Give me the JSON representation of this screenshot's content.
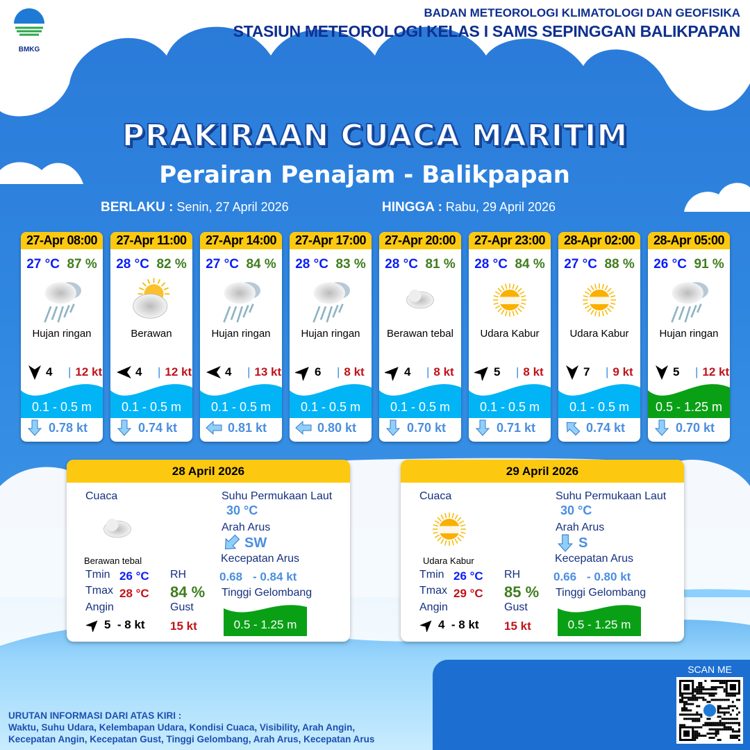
{
  "header": {
    "logo_text": "BMKG",
    "agency": "BADAN METEOROLOGI KLIMATOLOGI DAN GEOFISIKA",
    "station": "STASIUN METEOROLOGI KELAS I SAMS SEPINGGAN BALIKPAPAN"
  },
  "title": "PRAKIRAAN CUACA MARITIM",
  "subtitle": "Perairan Penajam - Balikpapan",
  "validity": {
    "from_label": "BERLAKU :",
    "from": "Senin, 27 April 2026",
    "to_label": "HINGGA :",
    "to": "Rabu, 29 April 2026"
  },
  "colors": {
    "header_yellow": "#fcc910",
    "wave_low": "#00b4f5",
    "wave_moderate": "#0aa016",
    "temp": "#0a1ef5",
    "humidity": "#3f7d1e",
    "gust": "#c0121a"
  },
  "forecasts": [
    {
      "time": "27-Apr 08:00",
      "temp": "27 °C",
      "rh": "87 %",
      "icon": "rain-cloud-icon",
      "condition": "Hujan ringan",
      "wind_from": "N",
      "wind": "4",
      "gust": "12 kt",
      "wave": "0.1 - 0.5 m",
      "wave_level": "low",
      "current_to": "S",
      "current": "0.78 kt"
    },
    {
      "time": "27-Apr 11:00",
      "temp": "28 °C",
      "rh": "82 %",
      "icon": "partly-cloudy-icon",
      "condition": "Berawan",
      "wind_from": "E",
      "wind": "4",
      "gust": "12 kt",
      "wave": "0.1 - 0.5 m",
      "wave_level": "low",
      "current_to": "S",
      "current": "0.74 kt"
    },
    {
      "time": "27-Apr 14:00",
      "temp": "27 °C",
      "rh": "84 %",
      "icon": "rain-cloud-icon",
      "condition": "Hujan ringan",
      "wind_from": "E",
      "wind": "4",
      "gust": "13 kt",
      "wave": "0.1 - 0.5 m",
      "wave_level": "low",
      "current_to": "W",
      "current": "0.81 kt"
    },
    {
      "time": "27-Apr 17:00",
      "temp": "28 °C",
      "rh": "83 %",
      "icon": "rain-cloud-icon",
      "condition": "Hujan ringan",
      "wind_from": "SW",
      "wind": "6",
      "gust": "8 kt",
      "wave": "0.1 - 0.5 m",
      "wave_level": "low",
      "current_to": "W",
      "current": "0.80 kt"
    },
    {
      "time": "27-Apr 20:00",
      "temp": "28 °C",
      "rh": "81 %",
      "icon": "cloud-icon",
      "condition": "Berawan tebal",
      "wind_from": "SW",
      "wind": "4",
      "gust": "8 kt",
      "wave": "0.1 - 0.5 m",
      "wave_level": "low",
      "current_to": "S",
      "current": "0.70 kt"
    },
    {
      "time": "27-Apr 23:00",
      "temp": "28 °C",
      "rh": "84 %",
      "icon": "haze-sun-icon",
      "condition": "Udara Kabur",
      "wind_from": "SW",
      "wind": "5",
      "gust": "8 kt",
      "wave": "0.1 - 0.5 m",
      "wave_level": "low",
      "current_to": "S",
      "current": "0.71 kt"
    },
    {
      "time": "28-Apr 02:00",
      "temp": "27 °C",
      "rh": "88 %",
      "icon": "haze-sun-icon",
      "condition": "Udara Kabur",
      "wind_from": "N",
      "wind": "7",
      "gust": "9 kt",
      "wave": "0.1 - 0.5 m",
      "wave_level": "low",
      "current_to": "NW",
      "current": "0.74 kt"
    },
    {
      "time": "28-Apr 05:00",
      "temp": "26 °C",
      "rh": "91 %",
      "icon": "rain-cloud-icon",
      "condition": "Hujan ringan",
      "wind_from": "N",
      "wind": "5",
      "gust": "12 kt",
      "wave": "0.5 - 1.25 m",
      "wave_level": "moderate",
      "current_to": "S",
      "current": "0.70 kt"
    }
  ],
  "daily": [
    {
      "date": "28 April 2026",
      "weather_label": "Cuaca",
      "icon": "cloud-icon",
      "condition": "Berawan tebal",
      "tmin_label": "Tmin",
      "tmin": "26 °C",
      "tmax_label": "Tmax",
      "tmax": "28 °C",
      "rh_label": "RH",
      "rh": "84 %",
      "wind_label": "Angin",
      "wind_from": "SW",
      "wind": "5  - 8 kt",
      "gust_label": "Gust",
      "gust": "15 kt",
      "sst_label": "Suhu Permukaan Laut",
      "sst": "30 °C",
      "current_dir_label": "Arah Arus",
      "current_to": "SW",
      "current_dir": "SW",
      "current_speed_label": "Kecepatan Arus",
      "current_min": "0.68",
      "current_max": "- 0.84 kt",
      "wave_label": "Tinggi Gelombang",
      "wave": "0.5 - 1.25 m"
    },
    {
      "date": "29 April 2026",
      "weather_label": "Cuaca",
      "icon": "haze-sun-icon",
      "condition": "Udara Kabur",
      "tmin_label": "Tmin",
      "tmin": "26 °C",
      "tmax_label": "Tmax",
      "tmax": "29 °C",
      "rh_label": "RH",
      "rh": "85 %",
      "wind_label": "Angin",
      "wind_from": "SW",
      "wind": "4  - 8 kt",
      "gust_label": "Gust",
      "gust": "15 kt",
      "sst_label": "Suhu Permukaan Laut",
      "sst": "30 °C",
      "current_dir_label": "Arah Arus",
      "current_to": "S",
      "current_dir": "S",
      "current_speed_label": "Kecepatan Arus",
      "current_min": "0.66",
      "current_max": "- 0.80 kt",
      "wave_label": "Tinggi Gelombang",
      "wave": "0.5 - 1.25 m"
    }
  ],
  "footer": {
    "heading": "URUTAN INFORMASI DARI ATAS KIRI :",
    "line1": "Waktu, Suhu Udara, Kelembapan Udara, Kondisi Cuaca, Visibility, Arah Angin,",
    "line2": "Kecepatan Angin, Kecepatan Gust, Tinggi Gelombang, Arah Arus, Kecepatan Arus"
  },
  "qr": {
    "label": "SCAN ME"
  }
}
